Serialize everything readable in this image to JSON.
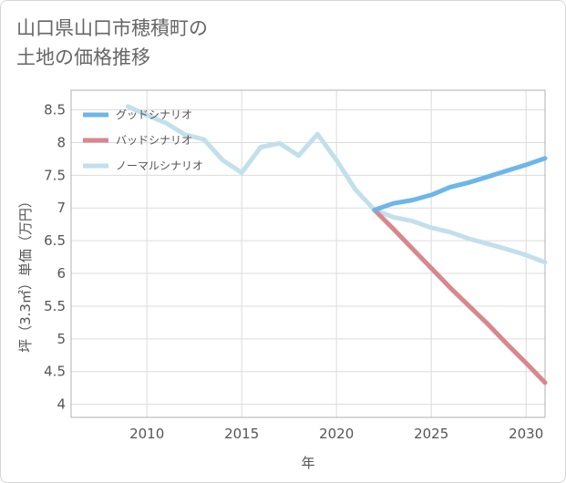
{
  "title": {
    "line1": "山口県山口市穂積町の",
    "line2": "土地の価格推移"
  },
  "chart_data": {
    "type": "line",
    "xlabel": "年",
    "ylabel": "坪（3.3㎡）単価（万円）",
    "xlim": [
      2006,
      2031
    ],
    "ylim": [
      3.8,
      8.8
    ],
    "xticks": [
      2010,
      2015,
      2020,
      2025,
      2030
    ],
    "yticks": [
      4,
      4.5,
      5,
      5.5,
      6,
      6.5,
      7,
      7.5,
      8,
      8.5
    ],
    "ytick_labels": [
      "4",
      "4.5",
      "5",
      "5.5",
      "6",
      "6.5",
      "7",
      "7.5",
      "8",
      "8.5"
    ],
    "grid": true,
    "legend_position": "top-left",
    "series": [
      {
        "name": "グッドシナリオ",
        "color": "#6cb6ea",
        "x": [
          2022,
          2023,
          2024,
          2025,
          2026,
          2027,
          2028,
          2029,
          2030,
          2031
        ],
        "y": [
          6.97,
          7.07,
          7.12,
          7.2,
          7.32,
          7.39,
          7.48,
          7.57,
          7.66,
          7.76
        ]
      },
      {
        "name": "バッドシナリオ",
        "color": "#d9868f",
        "x": [
          2022,
          2023,
          2024,
          2025,
          2026,
          2027,
          2028,
          2029,
          2030,
          2031
        ],
        "y": [
          6.97,
          6.68,
          6.38,
          6.08,
          5.78,
          5.5,
          5.22,
          4.92,
          4.63,
          4.33
        ]
      },
      {
        "name": "ノーマルシナリオ",
        "color": "#c2dfec",
        "x": [
          2009,
          2010,
          2011,
          2012,
          2013,
          2014,
          2015,
          2016,
          2017,
          2018,
          2019,
          2020,
          2021,
          2022,
          2023,
          2024,
          2025,
          2026,
          2027,
          2028,
          2029,
          2030,
          2031
        ],
        "y": [
          8.55,
          8.42,
          8.3,
          8.12,
          8.05,
          7.73,
          7.54,
          7.93,
          7.99,
          7.8,
          8.13,
          7.73,
          7.28,
          6.97,
          6.86,
          6.8,
          6.7,
          6.63,
          6.53,
          6.45,
          6.37,
          6.28,
          6.17
        ]
      }
    ]
  }
}
